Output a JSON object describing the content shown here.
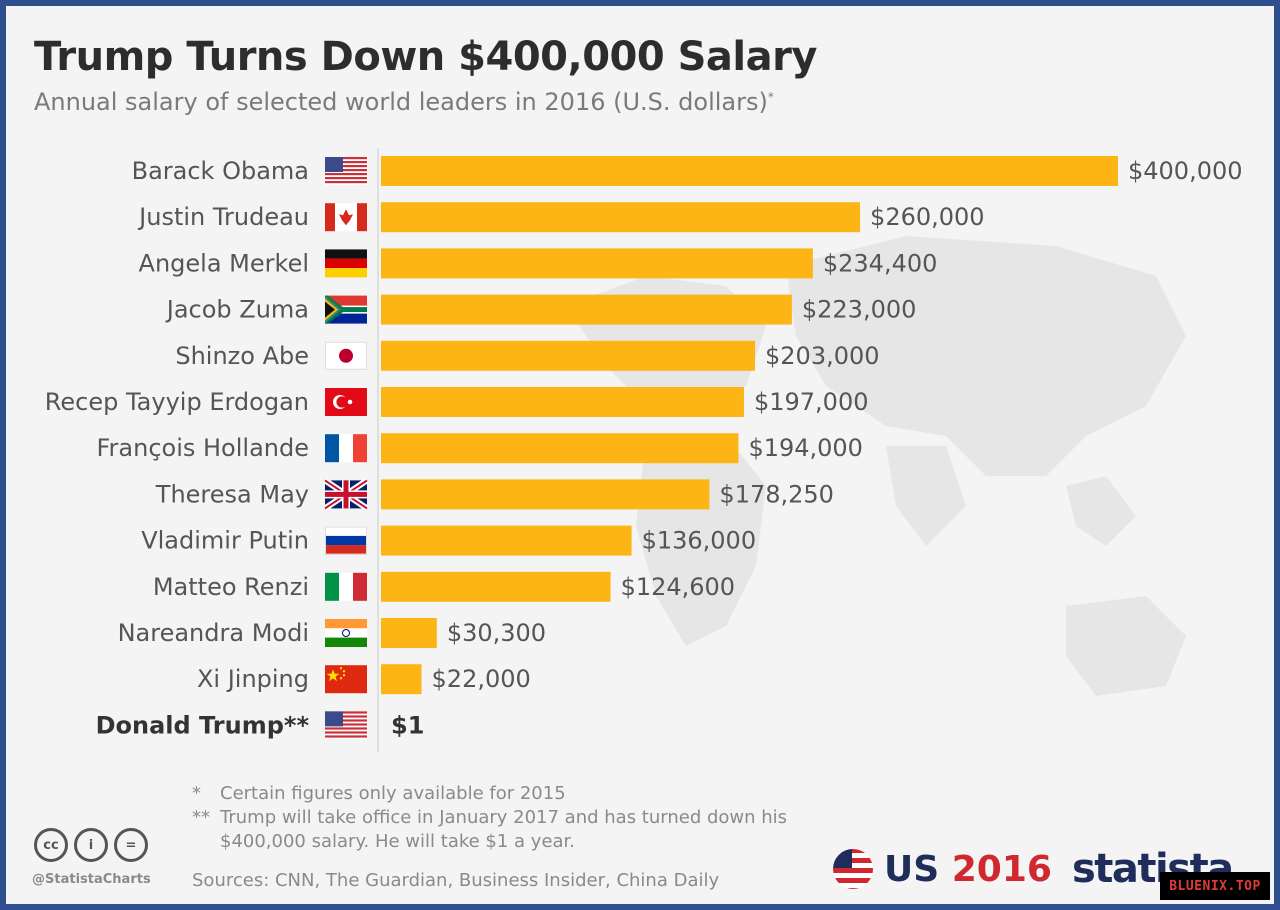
{
  "header": {
    "title": "Trump Turns Down $400,000 Salary",
    "subtitle": "Annual salary of selected world leaders in 2016 (U.S. dollars)",
    "subtitle_mark": "*"
  },
  "chart_data": {
    "type": "bar",
    "orientation": "horizontal",
    "title": "Trump Turns Down $400,000 Salary",
    "subtitle": "Annual salary of selected world leaders in 2016 (U.S. dollars)*",
    "categories": [
      "Barack Obama",
      "Justin Trudeau",
      "Angela Merkel",
      "Jacob Zuma",
      "Shinzo Abe",
      "Recep Tayyip Erdogan",
      "François Hollande",
      "Theresa May",
      "Vladimir Putin",
      "Matteo Renzi",
      "Nareandra Modi",
      "Xi Jinping",
      "Donald Trump**"
    ],
    "values": [
      400000,
      260000,
      234400,
      223000,
      203000,
      197000,
      194000,
      178250,
      136000,
      124600,
      30300,
      22000,
      1
    ],
    "value_labels": [
      "$400,000",
      "$260,000",
      "$234,400",
      "$223,000",
      "$203,000",
      "$197,000",
      "$194,000",
      "$178,250",
      "$136,000",
      "$124,600",
      "$30,300",
      "$22,000",
      "$1"
    ],
    "flags": [
      "flag-us-icon",
      "flag-canada-icon",
      "flag-germany-icon",
      "flag-south-africa-icon",
      "flag-japan-icon",
      "flag-turkey-icon",
      "flag-france-icon",
      "flag-uk-icon",
      "flag-russia-icon",
      "flag-italy-icon",
      "flag-india-icon",
      "flag-china-icon",
      "flag-us-icon"
    ],
    "highlight_index": 12,
    "xlim": [
      0,
      400000
    ],
    "bar_color": "#fdb515",
    "grid": false,
    "legend": "none",
    "xlabel": "",
    "ylabel": ""
  },
  "footnotes": [
    {
      "mark": "*",
      "text": "Certain figures only available for 2015"
    },
    {
      "mark": "**",
      "text": "Trump will take office in January 2017 and has turned down his $400,000 salary. He will take $1 a year."
    }
  ],
  "sources": "Sources: CNN, The Guardian, Business Insider, China Daily",
  "footer": {
    "handle": "@StatistaCharts",
    "cc_icons": [
      "cc",
      "i",
      "="
    ],
    "us_label": "US",
    "year_label": "2016",
    "brand": "statista",
    "watermark": "BLUENIX.TOP"
  },
  "colors": {
    "bar": "#fdb515",
    "title": "#2d2d2d",
    "muted": "#7a7a7a",
    "brand": "#1e2d5a",
    "accent_red": "#d0282e"
  }
}
